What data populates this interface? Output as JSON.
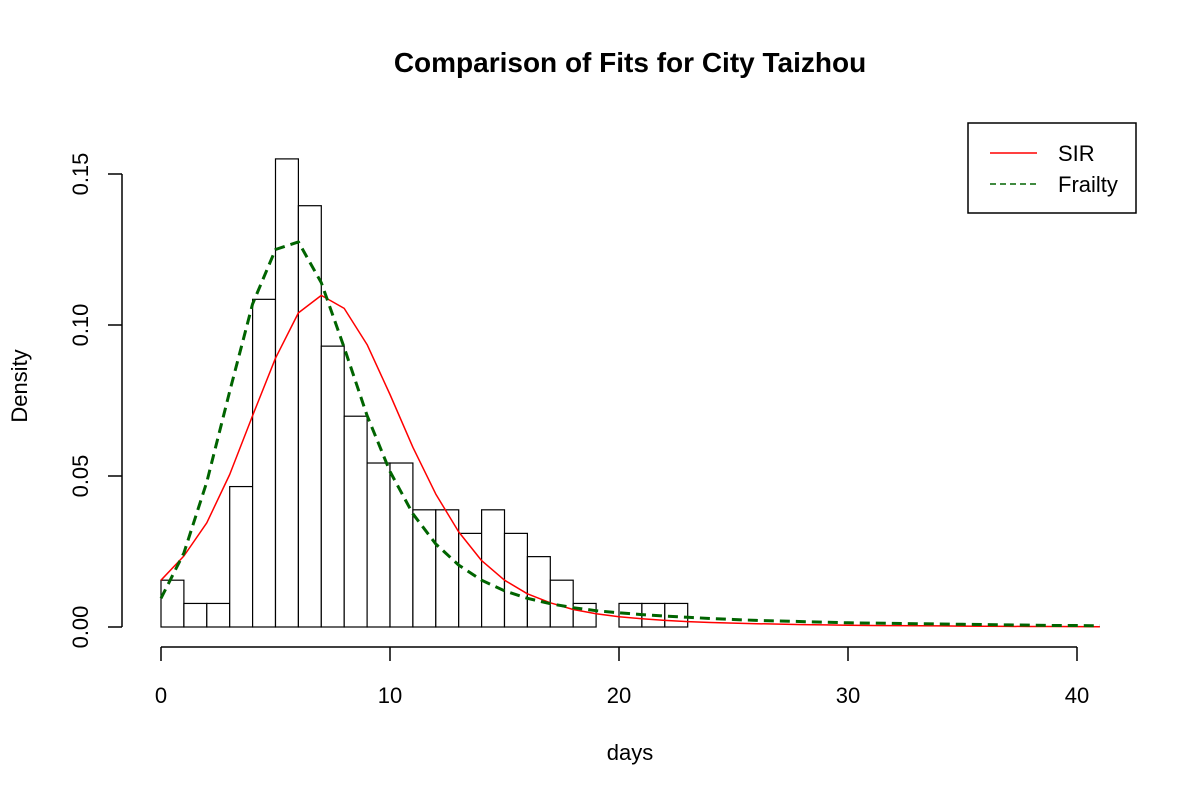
{
  "chart_data": {
    "type": "histogram",
    "title": "Comparison of Fits for City Taizhou",
    "xlabel": "days",
    "ylabel": "Density",
    "xlim": [
      0,
      41
    ],
    "ylim": [
      0,
      0.155
    ],
    "x_ticks": [
      0,
      10,
      20,
      30,
      40
    ],
    "x_tick_labels": [
      "0",
      "10",
      "20",
      "30",
      "40"
    ],
    "y_ticks": [
      0.0,
      0.05,
      0.1,
      0.15
    ],
    "y_tick_labels": [
      "0.00",
      "0.05",
      "0.10",
      "0.15"
    ],
    "grid": false,
    "legend_position": "top-right",
    "bins": {
      "breaks": [
        0,
        1,
        2,
        3,
        4,
        5,
        6,
        7,
        8,
        9,
        10,
        11,
        12,
        13,
        14,
        15,
        16,
        17,
        18,
        19,
        20,
        21,
        22,
        23
      ],
      "density": [
        0.0155,
        0.0078,
        0.0078,
        0.0465,
        0.1085,
        0.155,
        0.1395,
        0.093,
        0.0698,
        0.0543,
        0.0543,
        0.0388,
        0.0388,
        0.031,
        0.0388,
        0.031,
        0.0233,
        0.0155,
        0.0078,
        0,
        0.0078,
        0.0078,
        0.0078
      ]
    },
    "series": [
      {
        "name": "SIR",
        "style": "solid",
        "color": "#ff0000",
        "x": [
          0,
          1,
          2,
          3,
          4,
          5,
          6,
          7,
          8,
          9,
          10,
          11,
          12,
          13,
          14,
          15,
          16,
          17,
          18,
          19,
          20,
          21,
          22,
          23,
          24,
          25,
          26,
          27,
          28,
          29,
          30,
          31,
          32,
          33,
          34,
          35,
          36,
          37,
          38,
          39,
          40,
          41
        ],
        "y": [
          0.0155,
          0.0235,
          0.0345,
          0.0505,
          0.07,
          0.089,
          0.104,
          0.1098,
          0.1055,
          0.0935,
          0.077,
          0.0595,
          0.044,
          0.0315,
          0.022,
          0.0155,
          0.011,
          0.008,
          0.0058,
          0.0044,
          0.0034,
          0.0027,
          0.0022,
          0.0018,
          0.0015,
          0.0013,
          0.0011,
          0.00095,
          0.0008,
          0.0007,
          0.0006,
          0.0005,
          0.00045,
          0.0004,
          0.00035,
          0.0003,
          0.00025,
          0.0002,
          0.00018,
          0.00015,
          0.00012,
          0.0001
        ]
      },
      {
        "name": "Frailty",
        "style": "dashed",
        "color": "#006400",
        "x": [
          0,
          1,
          2,
          3,
          4,
          5,
          6,
          7,
          8,
          9,
          10,
          11,
          12,
          13,
          14,
          15,
          16,
          17,
          18,
          19,
          20,
          21,
          22,
          23,
          24,
          25,
          26,
          27,
          28,
          29,
          30,
          31,
          32,
          33,
          34,
          35,
          36,
          37,
          38,
          39,
          40,
          41
        ],
        "y": [
          0.0095,
          0.0245,
          0.048,
          0.078,
          0.107,
          0.125,
          0.1275,
          0.114,
          0.0925,
          0.07,
          0.0515,
          0.0375,
          0.0275,
          0.0205,
          0.0155,
          0.012,
          0.0095,
          0.0077,
          0.0064,
          0.0054,
          0.0047,
          0.0041,
          0.0036,
          0.0032,
          0.0028,
          0.0025,
          0.0022,
          0.002,
          0.0018,
          0.0016,
          0.0014,
          0.0013,
          0.0012,
          0.0011,
          0.001,
          0.0009,
          0.0008,
          0.0007,
          0.0006,
          0.0005,
          0.0005,
          0.0004
        ]
      }
    ]
  }
}
